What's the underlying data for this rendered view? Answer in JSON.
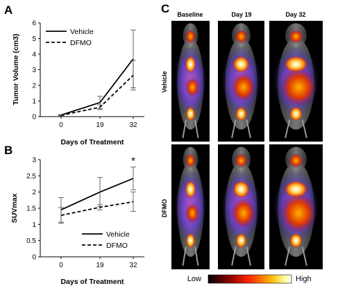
{
  "panels": {
    "a": "A",
    "b": "B",
    "c": "C"
  },
  "chart_data": [
    {
      "type": "line",
      "panel": "A",
      "x": [
        0,
        19,
        32
      ],
      "xticks": [
        "0",
        "19",
        "32"
      ],
      "xlabel": "Days of Treatment",
      "ylabel": "Tumor Volume (cm3)",
      "ylim": [
        0,
        6
      ],
      "yticks": [
        "0",
        "1",
        "2",
        "3",
        "4",
        "5",
        "6"
      ],
      "legend_position": "top-left",
      "series": [
        {
          "name": "Vehicle",
          "style": "solid",
          "values": [
            0.1,
            0.9,
            3.7
          ],
          "errors": [
            0.03,
            0.4,
            1.85
          ]
        },
        {
          "name": "DFMO",
          "style": "dashed",
          "values": [
            0.08,
            0.6,
            2.65
          ],
          "errors": [
            0.03,
            0.15,
            0.95
          ]
        }
      ]
    },
    {
      "type": "line",
      "panel": "B",
      "x": [
        0,
        19,
        32
      ],
      "xticks": [
        "0",
        "19",
        "32"
      ],
      "xlabel": "Days of Treatment",
      "ylabel": "SUVmax",
      "ylim": [
        0,
        3
      ],
      "yticks": [
        "0",
        "0.5",
        "1",
        "1.5",
        "2",
        "2.5",
        "3"
      ],
      "legend_position": "bottom-right",
      "annotation": "*",
      "series": [
        {
          "name": "Vehicle",
          "style": "solid",
          "values": [
            1.45,
            2.0,
            2.42
          ],
          "errors": [
            0.38,
            0.45,
            0.35
          ]
        },
        {
          "name": "DFMO",
          "style": "dashed",
          "values": [
            1.28,
            1.53,
            1.7
          ],
          "errors": [
            0.24,
            0.08,
            0.3
          ]
        }
      ]
    }
  ],
  "images": {
    "columns": [
      "Baseline",
      "Day 19",
      "Day 32"
    ],
    "rows": [
      "Vehicle",
      "DFMO"
    ],
    "colorbar": {
      "low": "Low",
      "high": "High",
      "colors": [
        "#000000",
        "#8a0000",
        "#ff2a00",
        "#ffb300",
        "#ffff99",
        "#ffffff"
      ]
    }
  }
}
